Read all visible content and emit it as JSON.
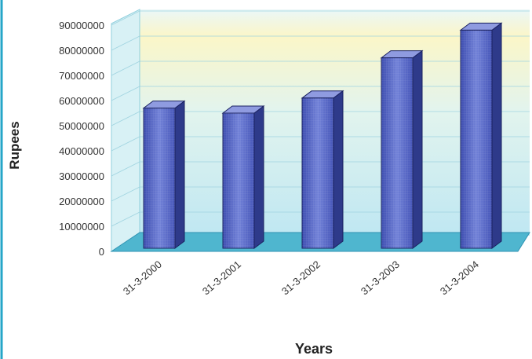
{
  "chart_data": {
    "type": "bar",
    "title": "",
    "xlabel": "Years",
    "ylabel": "Rupees",
    "categories": [
      "31-3-2000",
      "31-3-2001",
      "31-3-2002",
      "31-3-2003",
      "31-3-2004"
    ],
    "values": [
      57000000,
      55000000,
      61000000,
      77000000,
      88000000
    ],
    "ylim": [
      0,
      90000000
    ],
    "yticks": [
      "0",
      "10000000",
      "20000000",
      "30000000",
      "40000000",
      "50000000",
      "60000000",
      "70000000",
      "80000000",
      "90000000"
    ],
    "grid": true,
    "legend": "none",
    "three_d": true,
    "colors": {
      "bar_front": "#5b6cc8",
      "bar_side": "#2e3a8a",
      "bar_top": "#8f9be0",
      "wall": "#cdeff6",
      "wall_glow": "#fbf6c8",
      "floor": "#4fb6cf",
      "frame": "#25a6c8",
      "grid": "#9fd3e0"
    }
  }
}
